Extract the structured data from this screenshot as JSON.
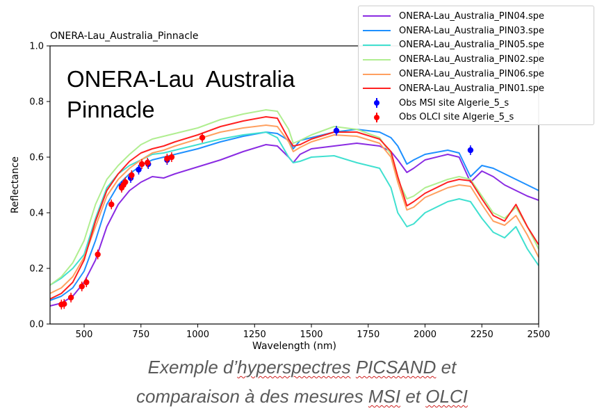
{
  "chart_data": {
    "type": "line",
    "title": "ONERA-Lau_Australia_Pinnacle",
    "overlay_text": "ONERA-Lau  Australia\nPinnacle",
    "xlabel": "Wavelength (nm)",
    "ylabel": "Reflectance",
    "xlim": [
      350,
      2500
    ],
    "ylim": [
      0.0,
      1.0
    ],
    "xticks": [
      500,
      750,
      1000,
      1250,
      1500,
      1750,
      2000,
      2250,
      2500
    ],
    "yticks": [
      0.0,
      0.2,
      0.4,
      0.6,
      0.8,
      1.0
    ],
    "ytick_labels": [
      "0.0",
      "0.2",
      "0.4",
      "0.6",
      "0.8",
      "1.0"
    ],
    "x": [
      350,
      400,
      450,
      500,
      550,
      600,
      650,
      700,
      750,
      800,
      850,
      900,
      1000,
      1100,
      1200,
      1300,
      1350,
      1400,
      1420,
      1450,
      1500,
      1600,
      1700,
      1800,
      1850,
      1880,
      1920,
      1950,
      2000,
      2100,
      2150,
      2200,
      2250,
      2300,
      2350,
      2400,
      2450,
      2500
    ],
    "series": [
      {
        "name": "ONERA-Lau_Australia_PIN04.spe",
        "color": "#8a2be2",
        "values": [
          0.065,
          0.075,
          0.1,
          0.15,
          0.23,
          0.35,
          0.43,
          0.48,
          0.51,
          0.53,
          0.525,
          0.54,
          0.565,
          0.59,
          0.62,
          0.645,
          0.64,
          0.6,
          0.58,
          0.61,
          0.63,
          0.64,
          0.65,
          0.64,
          0.62,
          0.59,
          0.545,
          0.56,
          0.59,
          0.61,
          0.6,
          0.51,
          0.55,
          0.53,
          0.5,
          0.48,
          0.46,
          0.445
        ]
      },
      {
        "name": "ONERA-Lau_Australia_PIN03.spe",
        "color": "#1e90ff",
        "values": [
          0.085,
          0.1,
          0.13,
          0.19,
          0.3,
          0.43,
          0.5,
          0.54,
          0.57,
          0.59,
          0.6,
          0.61,
          0.63,
          0.655,
          0.675,
          0.69,
          0.685,
          0.66,
          0.63,
          0.66,
          0.67,
          0.69,
          0.7,
          0.69,
          0.67,
          0.64,
          0.575,
          0.59,
          0.61,
          0.625,
          0.615,
          0.53,
          0.57,
          0.56,
          0.54,
          0.52,
          0.5,
          0.48
        ]
      },
      {
        "name": "ONERA-Lau_Australia_PIN05.spe",
        "color": "#40e0d0",
        "values": [
          0.14,
          0.165,
          0.2,
          0.25,
          0.38,
          0.49,
          0.54,
          0.57,
          0.59,
          0.61,
          0.615,
          0.625,
          0.645,
          0.665,
          0.68,
          0.69,
          0.67,
          0.6,
          0.58,
          0.585,
          0.6,
          0.605,
          0.58,
          0.56,
          0.49,
          0.4,
          0.35,
          0.36,
          0.4,
          0.44,
          0.45,
          0.44,
          0.38,
          0.33,
          0.31,
          0.35,
          0.27,
          0.21
        ]
      },
      {
        "name": "ONERA-Lau_Australia_PIN02.spe",
        "color": "#b0ee90",
        "values": [
          0.14,
          0.17,
          0.22,
          0.3,
          0.43,
          0.52,
          0.57,
          0.61,
          0.645,
          0.665,
          0.675,
          0.685,
          0.705,
          0.735,
          0.755,
          0.77,
          0.765,
          0.7,
          0.65,
          0.66,
          0.68,
          0.71,
          0.7,
          0.67,
          0.61,
          0.52,
          0.45,
          0.46,
          0.49,
          0.52,
          0.53,
          0.52,
          0.46,
          0.4,
          0.38,
          0.42,
          0.35,
          0.27
        ]
      },
      {
        "name": "ONERA-Lau_Australia_PIN06.spe",
        "color": "#ffa060",
        "values": [
          0.11,
          0.13,
          0.17,
          0.24,
          0.35,
          0.46,
          0.52,
          0.56,
          0.59,
          0.615,
          0.625,
          0.64,
          0.665,
          0.69,
          0.705,
          0.715,
          0.71,
          0.655,
          0.62,
          0.635,
          0.655,
          0.68,
          0.675,
          0.65,
          0.6,
          0.51,
          0.41,
          0.42,
          0.455,
          0.49,
          0.5,
          0.495,
          0.43,
          0.37,
          0.355,
          0.39,
          0.32,
          0.24
        ]
      },
      {
        "name": "ONERA-Lau_Australia_PIN01.spe",
        "color": "#ff2020",
        "values": [
          0.09,
          0.11,
          0.15,
          0.23,
          0.37,
          0.48,
          0.54,
          0.585,
          0.615,
          0.63,
          0.64,
          0.655,
          0.68,
          0.71,
          0.73,
          0.745,
          0.74,
          0.665,
          0.64,
          0.645,
          0.665,
          0.69,
          0.69,
          0.665,
          0.62,
          0.53,
          0.425,
          0.44,
          0.47,
          0.51,
          0.52,
          0.515,
          0.45,
          0.39,
          0.37,
          0.43,
          0.35,
          0.285
        ]
      }
    ],
    "observations": [
      {
        "name": "Obs MSI site Algerie_5_s",
        "color": "#0000ff",
        "x": [
          665,
          705,
          740,
          782,
          865,
          1610,
          2200
        ],
        "y": [
          0.495,
          0.525,
          0.555,
          0.575,
          0.59,
          0.695,
          0.625
        ]
      },
      {
        "name": "Obs OLCI site Algerie_5_s",
        "color": "#ff0000",
        "x": [
          400,
          412,
          442,
          490,
          510,
          560,
          620,
          665,
          673,
          681,
          709,
          754,
          779,
          865,
          885,
          1020
        ],
        "y": [
          0.07,
          0.072,
          0.095,
          0.135,
          0.15,
          0.25,
          0.43,
          0.49,
          0.5,
          0.51,
          0.535,
          0.575,
          0.58,
          0.595,
          0.6,
          0.67
        ]
      }
    ],
    "legend_position": "top-right",
    "grid": false
  },
  "caption": {
    "line1_a": "Exemple d’",
    "line1_b": "hyperspectres",
    "line1_c": " ",
    "line1_d": "PICSAND",
    "line1_e": " et",
    "line2_a": "comparaison à des mesures ",
    "line2_b": "MSI",
    "line2_c": " et ",
    "line2_d": "OLCI"
  }
}
